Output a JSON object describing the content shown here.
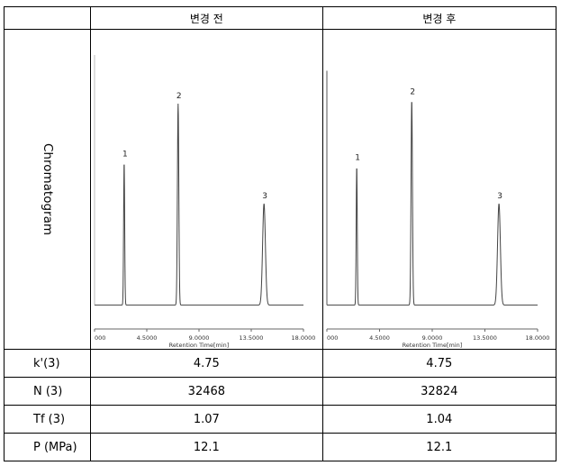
{
  "header": {
    "before": "변경 전",
    "after": "변경 후"
  },
  "row_label": "Chromatogram",
  "chart_data": [
    {
      "type": "line",
      "title": "변경 전",
      "xlabel": "Retention Time[min]",
      "xlim": [
        0,
        18
      ],
      "xticks": [
        "000",
        "4.5000",
        "9.0000",
        "13.5000",
        "18.0000"
      ],
      "ylim": [
        0,
        1
      ],
      "baseline": 0.05,
      "solvent_front": null,
      "peaks": [
        {
          "label": "1",
          "rt": 2.55,
          "height": 0.545,
          "width": 0.045
        },
        {
          "label": "2",
          "rt": 7.2,
          "height": 0.765,
          "width": 0.06
        },
        {
          "label": "3",
          "rt": 14.6,
          "height": 0.385,
          "width": 0.12
        }
      ]
    },
    {
      "type": "line",
      "title": "변경 후",
      "xlabel": "Retention Time[min]",
      "xlim": [
        0,
        18
      ],
      "xticks": [
        "000",
        "4.5000",
        "9.0000",
        "13.5000",
        "18.0000"
      ],
      "ylim": [
        0,
        1
      ],
      "baseline": 0.05,
      "solvent_front": 0.94,
      "peaks": [
        {
          "label": "1",
          "rt": 2.55,
          "height": 0.53,
          "width": 0.045
        },
        {
          "label": "2",
          "rt": 7.25,
          "height": 0.78,
          "width": 0.06
        },
        {
          "label": "3",
          "rt": 14.7,
          "height": 0.385,
          "width": 0.12
        }
      ]
    }
  ],
  "rows": [
    {
      "label": "k'(3)",
      "before": "4.75",
      "after": "4.75"
    },
    {
      "label": "N (3)",
      "before": "32468",
      "after": "32824"
    },
    {
      "label": "Tf (3)",
      "before": "1.07",
      "after": "1.04"
    },
    {
      "label": "P (MPa)",
      "before": "12.1",
      "after": "12.1"
    }
  ]
}
